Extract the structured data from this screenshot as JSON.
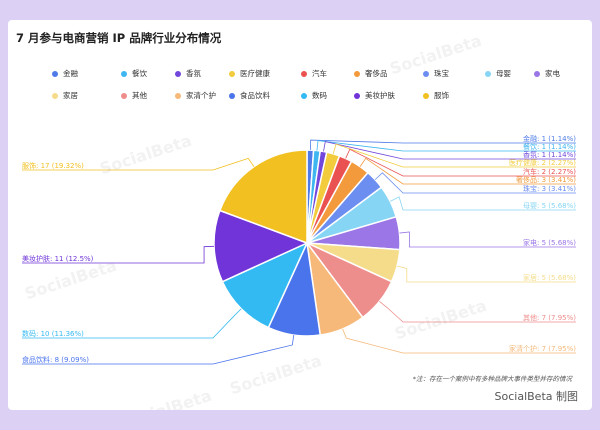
{
  "chart_data": {
    "type": "pie",
    "title": "7 月参与电商营销 IP 品牌行业分布情况",
    "series": [
      {
        "name": "金融",
        "value": 1,
        "label": "金融: 1 (1.14%)",
        "color": "#4f7be8"
      },
      {
        "name": "餐饮",
        "value": 1,
        "label": "餐饮: 1 (1.14%)",
        "color": "#3eb6f0"
      },
      {
        "name": "香氛",
        "value": 1,
        "label": "香氛: 1 (1.14%)",
        "color": "#7247dc"
      },
      {
        "name": "医疗健康",
        "value": 2,
        "label": "医疗健康: 2 (2.27%)",
        "color": "#f2cc3c"
      },
      {
        "name": "汽车",
        "value": 2,
        "label": "汽车: 2 (2.27%)",
        "color": "#ea5252"
      },
      {
        "name": "奢侈品",
        "value": 3,
        "label": "奢侈品: 3 (3.41%)",
        "color": "#f29a3c"
      },
      {
        "name": "珠宝",
        "value": 3,
        "label": "珠宝: 3 (3.41%)",
        "color": "#6b8ef0"
      },
      {
        "name": "母婴",
        "value": 5,
        "label": "母婴: 5 (5.68%)",
        "color": "#86d5f4"
      },
      {
        "name": "家电",
        "value": 5,
        "label": "家电: 5 (5.68%)",
        "color": "#9a76e6"
      },
      {
        "name": "家居",
        "value": 5,
        "label": "家居: 5 (5.68%)",
        "color": "#f5dc8a"
      },
      {
        "name": "其他",
        "value": 7,
        "label": "其他: 7 (7.95%)",
        "color": "#ee8e8c"
      },
      {
        "name": "家清个护",
        "value": 7,
        "label": "家清个护: 7 (7.95%)",
        "color": "#f6b97a"
      },
      {
        "name": "食品饮料",
        "value": 8,
        "label": "食品饮料: 8 (9.09%)",
        "color": "#4a74ec"
      },
      {
        "name": "数码",
        "value": 10,
        "label": "数码: 10 (11.36%)",
        "color": "#34baf2"
      },
      {
        "name": "美妆护肤",
        "value": 11,
        "label": "美妆护肤: 11 (12.5%)",
        "color": "#7034d8"
      },
      {
        "name": "服饰",
        "value": 17,
        "label": "服饰: 17 (19.32%)",
        "color": "#f2c020"
      }
    ],
    "legend_position": "top"
  },
  "note": "*注：存在一个案例中有多种品牌大事件类型并存的情况",
  "credit": "SocialBeta 制图",
  "watermark": "SocialBeta"
}
